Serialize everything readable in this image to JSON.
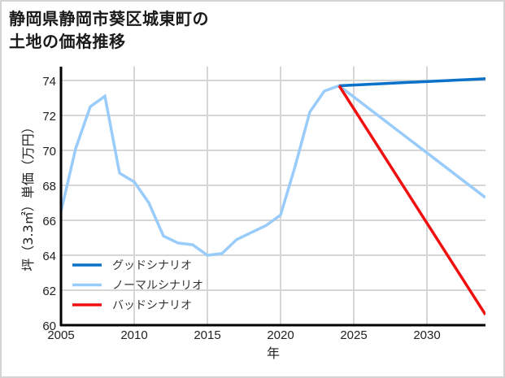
{
  "title": {
    "line1": "静岡県静岡市葵区城東町の",
    "line2": "土地の価格推移"
  },
  "colors": {
    "good": "#0a72c8",
    "normal": "#99ccfa",
    "bad": "#f01010",
    "grid": "#d6d6d6",
    "axis": "#000000"
  },
  "chart_data": {
    "type": "line",
    "title": "静岡県静岡市葵区城東町の土地の価格推移",
    "xlabel": "年",
    "ylabel": "坪（3.3㎡）単価（万円）",
    "xlim": [
      2005,
      2034
    ],
    "ylim": [
      60,
      75
    ],
    "xticks": [
      2005,
      2010,
      2015,
      2020,
      2025,
      2030
    ],
    "yticks": [
      60,
      62,
      64,
      66,
      68,
      70,
      72,
      74
    ],
    "grid": true,
    "legend_position": "lower left",
    "series": [
      {
        "name": "グッドシナリオ",
        "color": "#0a72c8",
        "x": [
          2024,
          2034
        ],
        "values": [
          73.7,
          74.1
        ]
      },
      {
        "name": "ノーマルシナリオ",
        "color": "#99ccfa",
        "x": [
          2005,
          2006,
          2007,
          2008,
          2009,
          2010,
          2011,
          2012,
          2013,
          2014,
          2015,
          2016,
          2017,
          2018,
          2019,
          2020,
          2021,
          2022,
          2023,
          2024,
          2034
        ],
        "values": [
          66.5,
          70.1,
          72.5,
          73.1,
          68.7,
          68.2,
          67.0,
          65.1,
          64.7,
          64.6,
          64.0,
          64.1,
          64.9,
          65.3,
          65.7,
          66.3,
          69.1,
          72.2,
          73.4,
          73.7,
          67.3
        ]
      },
      {
        "name": "バッドシナリオ",
        "color": "#f01010",
        "x": [
          2024,
          2034
        ],
        "values": [
          73.7,
          60.6
        ]
      }
    ]
  }
}
